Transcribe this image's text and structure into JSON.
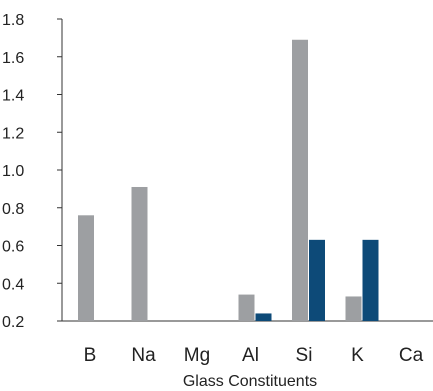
{
  "chart_data": {
    "type": "bar",
    "categories": [
      "B",
      "Na",
      "Mg",
      "Al",
      "Si",
      "K",
      "Ca"
    ],
    "series": [
      {
        "values": [
          0.76,
          0.91,
          null,
          0.34,
          1.69,
          0.33,
          null
        ],
        "color": "#9d9fa2"
      },
      {
        "values": [
          null,
          null,
          null,
          0.24,
          0.63,
          0.63,
          null
        ],
        "color": "#0d4a78"
      }
    ],
    "title": "",
    "xlabel": "Glass Constituents",
    "ylabel": "",
    "ylim": [
      0.2,
      1.8
    ],
    "yticks": [
      "1.8",
      "1.6",
      "1.4",
      "1.2",
      "1.0",
      "0.8",
      "0.6",
      "0.4",
      "0.2"
    ],
    "grid": false,
    "legend": "none",
    "axis_color": "#333333"
  }
}
